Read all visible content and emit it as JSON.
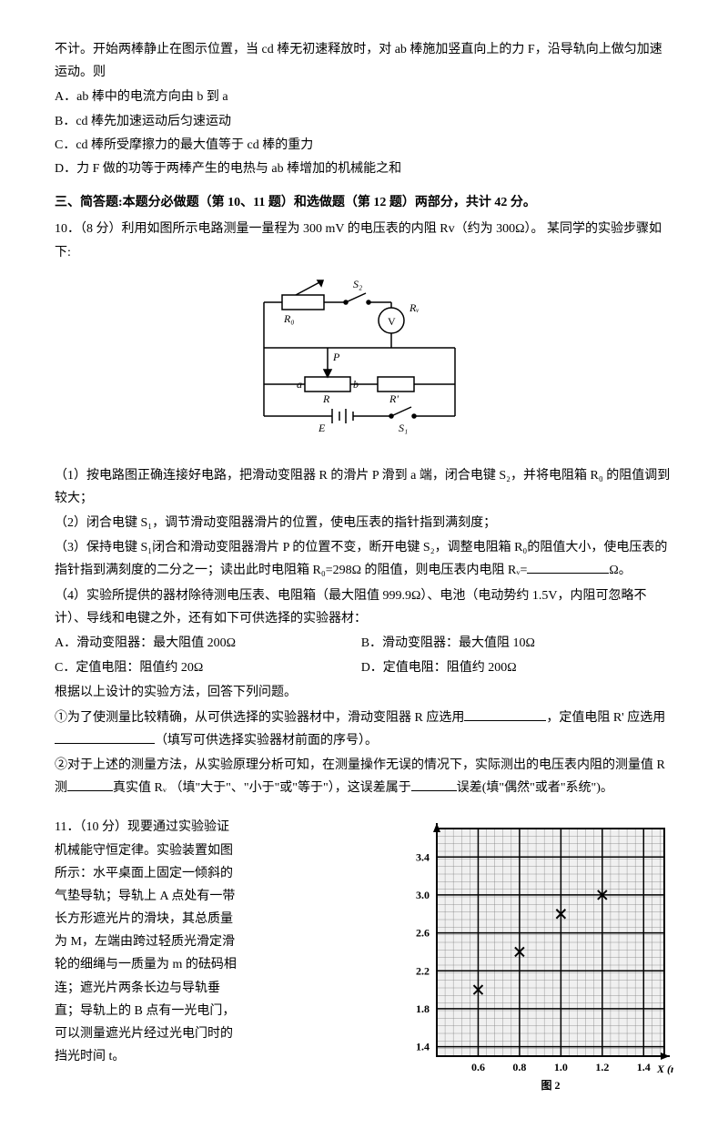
{
  "prelude": {
    "p1": "不计。开始两棒静止在图示位置，当 cd 棒无初速释放时，对 ab 棒施加竖直向上的力 F，沿导轨向上做匀加速运动。则",
    "opts": {
      "A": "A．ab 棒中的电流方向由 b 到 a",
      "B": "B．cd 棒先加速运动后匀速运动",
      "C": "C．cd 棒所受摩擦力的最大值等于 cd 棒的重力",
      "D": "D．力 F 做的功等于两棒产生的电热与 ab 棒增加的机械能之和"
    }
  },
  "section3_title": "三、简答题:本题分必做题（第 10、11 题）和选做题（第 12 题）两部分，共计 42 分。",
  "q10": {
    "stem": "10．（8 分）利用如图所示电路测量一量程为 300  mV 的电压表的内阻 Rv（约为 300Ω）。  某同学的实验步骤如下:",
    "circuit": {
      "labels": {
        "R0": "R₀",
        "S2": "S₂",
        "Rv": "Rᵥ",
        "V": "V",
        "P": "P",
        "a": "a",
        "b": "b",
        "R": "R",
        "Rp": "R'",
        "E": "E",
        "S1": "S₁"
      }
    },
    "s1": "（1）按电路图正确连接好电路，把滑动变阻器 R 的滑片 P 滑到 a 端，闭合电键 S₂，并将电阻箱 R₀ 的阻值调到较大；",
    "s2": "（2）闭合电键 S₁，调节滑动变阻器滑片的位置，使电压表的指针指到满刻度；",
    "s3a": "（3）保持电键 S₁闭合和滑动变阻器滑片 P 的位置不变，断开电键 S₂，调整电阻箱 R₀的阻值大小，使电压表的指针指到满刻度的二分之一；读出此时电阻箱 R₀=298Ω 的阻值，则电压表内电阻 Rᵥ=",
    "s3b": "Ω。",
    "s4": "（4）实验所提供的器材除待测电压表、电阻箱（最大阻值 999.9Ω）、电池（电动势约 1.5V，内阻可忽略不计）、导线和电键之外，还有如下可供选择的实验器材：",
    "s4opts": {
      "A": "A．滑动变阻器：最大阻值 200Ω",
      "B": "B．滑动变阻器：最大值阻 10Ω",
      "C": "C．定值电阻：阻值约 20Ω",
      "D": "D．定值电阻：阻值约 200Ω"
    },
    "s4tail": "根据以上设计的实验方法，回答下列问题。",
    "sub1a": "①为了使测量比较精确，从可供选择的实验器材中，滑动变阻器 R 应选用",
    "sub1b": "，定值电阻 R' 应选用",
    "sub1c": "（填写可供选择实验器材前面的序号）。",
    "sub2a": "②对于上述的测量方法，从实验原理分析可知，在测量操作无误的情况下，实际测出的电压表内阻的测量值    R 测",
    "sub2b": "真实值 Rᵥ  （填\"大于\"、\"小于\"或\"等于\"），这误差属于",
    "sub2c": "误差(填\"偶然\"或者\"系统\")。"
  },
  "q11": {
    "text": "11．（10 分）现要通过实验验证机械能守恒定律。实验装置如图所示：水平桌面上固定一倾斜的气垫导轨；导轨上 A 点处有一带长方形遮光片的滑块，其总质量为 M，左端由跨过轻质光滑定滑轮的细绳与一质量为 m 的砝码相连；遮光片两条长边与导轨垂直；导轨上的 B 点有一光电门，可以测量遮光片经过光电门时的挡光时间 t。",
    "chart": {
      "xlim": [
        0.4,
        1.5
      ],
      "ylim": [
        1.3,
        3.7
      ],
      "xticks": [
        0.6,
        0.8,
        1.0,
        1.2,
        1.4
      ],
      "yticks": [
        1.4,
        1.8,
        2.2,
        2.6,
        3.0,
        3.4
      ],
      "xlabel": "X (m)",
      "fig_label": "图 2",
      "points": [
        {
          "x": 0.6,
          "y": 2.0
        },
        {
          "x": 0.8,
          "y": 2.4
        },
        {
          "x": 1.0,
          "y": 2.8
        },
        {
          "x": 1.2,
          "y": 3.0
        }
      ],
      "grid_minor": 5,
      "bg": "#f0f0f0",
      "grid_color": "#000000",
      "minor_grid_color": "#808080",
      "tick_fontsize": 12,
      "label_fontsize": 12
    }
  }
}
